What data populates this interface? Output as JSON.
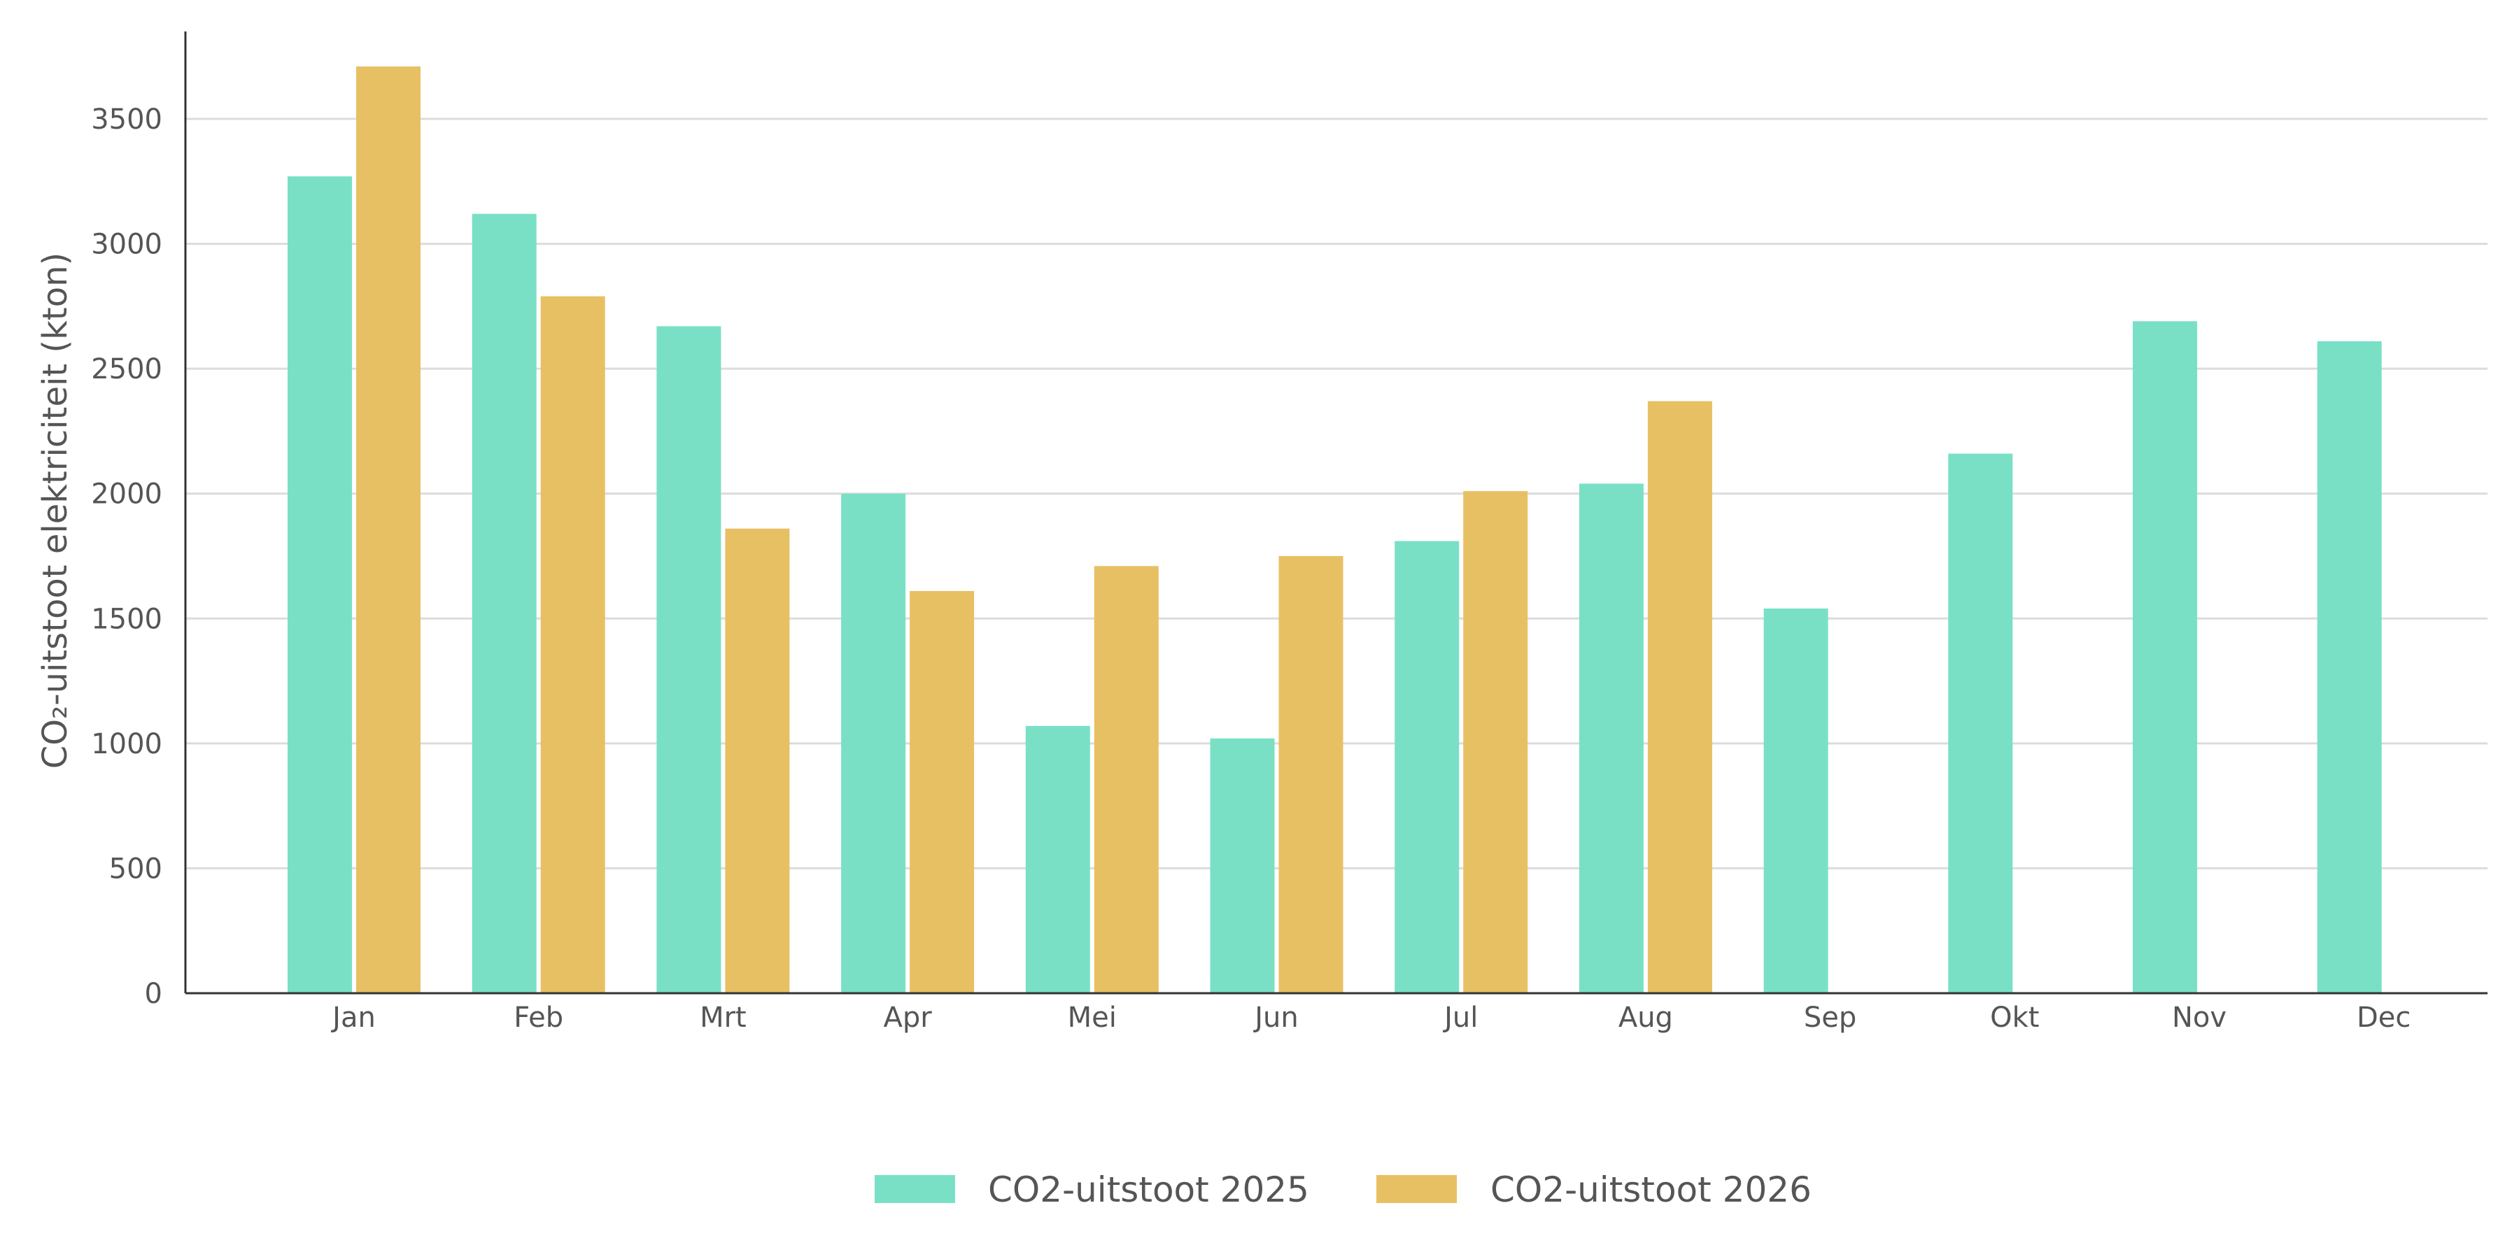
{
  "colors": {
    "series_2025": "#79e0c6",
    "series_2026": "#e8c064",
    "grid": "#dcdcdc",
    "axis": "#333333",
    "text": "#555555"
  },
  "chart_data": {
    "type": "bar",
    "title": "",
    "xlabel": "",
    "ylabel": "CO₂-uitstoot elektriciteit (kton)",
    "ylim": [
      0,
      3850
    ],
    "yticks": [
      0,
      500,
      1000,
      1500,
      2000,
      2500,
      3000,
      3500
    ],
    "grid": "horizontal",
    "legend_position": "bottom-center",
    "categories": [
      "Jan",
      "Feb",
      "Mrt",
      "Apr",
      "Mei",
      "Jun",
      "Jul",
      "Aug",
      "Sep",
      "Okt",
      "Nov",
      "Dec"
    ],
    "series": [
      {
        "name": "CO2-uitstoot 2025",
        "color": "#79e0c6",
        "values": [
          3270,
          3120,
          2670,
          2000,
          1070,
          1020,
          1810,
          2040,
          1540,
          2160,
          2690,
          2610
        ]
      },
      {
        "name": "CO2-uitstoot 2026",
        "color": "#e8c064",
        "values": [
          3710,
          2790,
          1860,
          1610,
          1710,
          1750,
          2010,
          2370,
          null,
          null,
          null,
          null
        ]
      }
    ]
  }
}
